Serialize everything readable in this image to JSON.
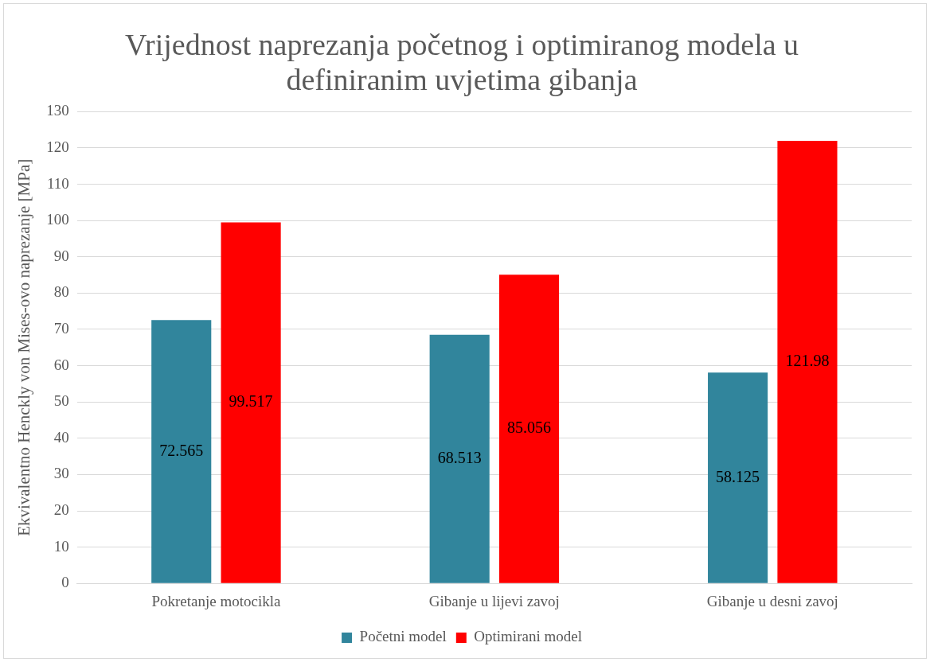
{
  "chart_data": {
    "type": "bar",
    "title": "Vrijednost naprezanja početnog i optimiranog modela u definiranim uvjetima gibanja",
    "ylabel": "Ekvivalentno Henckly von Mises-ovo naprezanje [MPa]",
    "categories": [
      "Pokretanje motocikla",
      "Gibanje u lijevi zavoj",
      "Gibanje u desni zavoj"
    ],
    "series": [
      {
        "name": "Početni model",
        "color": "#31859c",
        "values": [
          72.565,
          68.513,
          58.125
        ]
      },
      {
        "name": "Optimirani model",
        "color": "#ff0000",
        "values": [
          99.517,
          85.056,
          121.98
        ]
      }
    ],
    "ylim": [
      0,
      130
    ],
    "yticks": [
      0,
      10,
      20,
      30,
      40,
      50,
      60,
      70,
      80,
      90,
      100,
      110,
      120,
      130
    ],
    "grid": "y",
    "legend": "bottom",
    "data_labels": true
  }
}
